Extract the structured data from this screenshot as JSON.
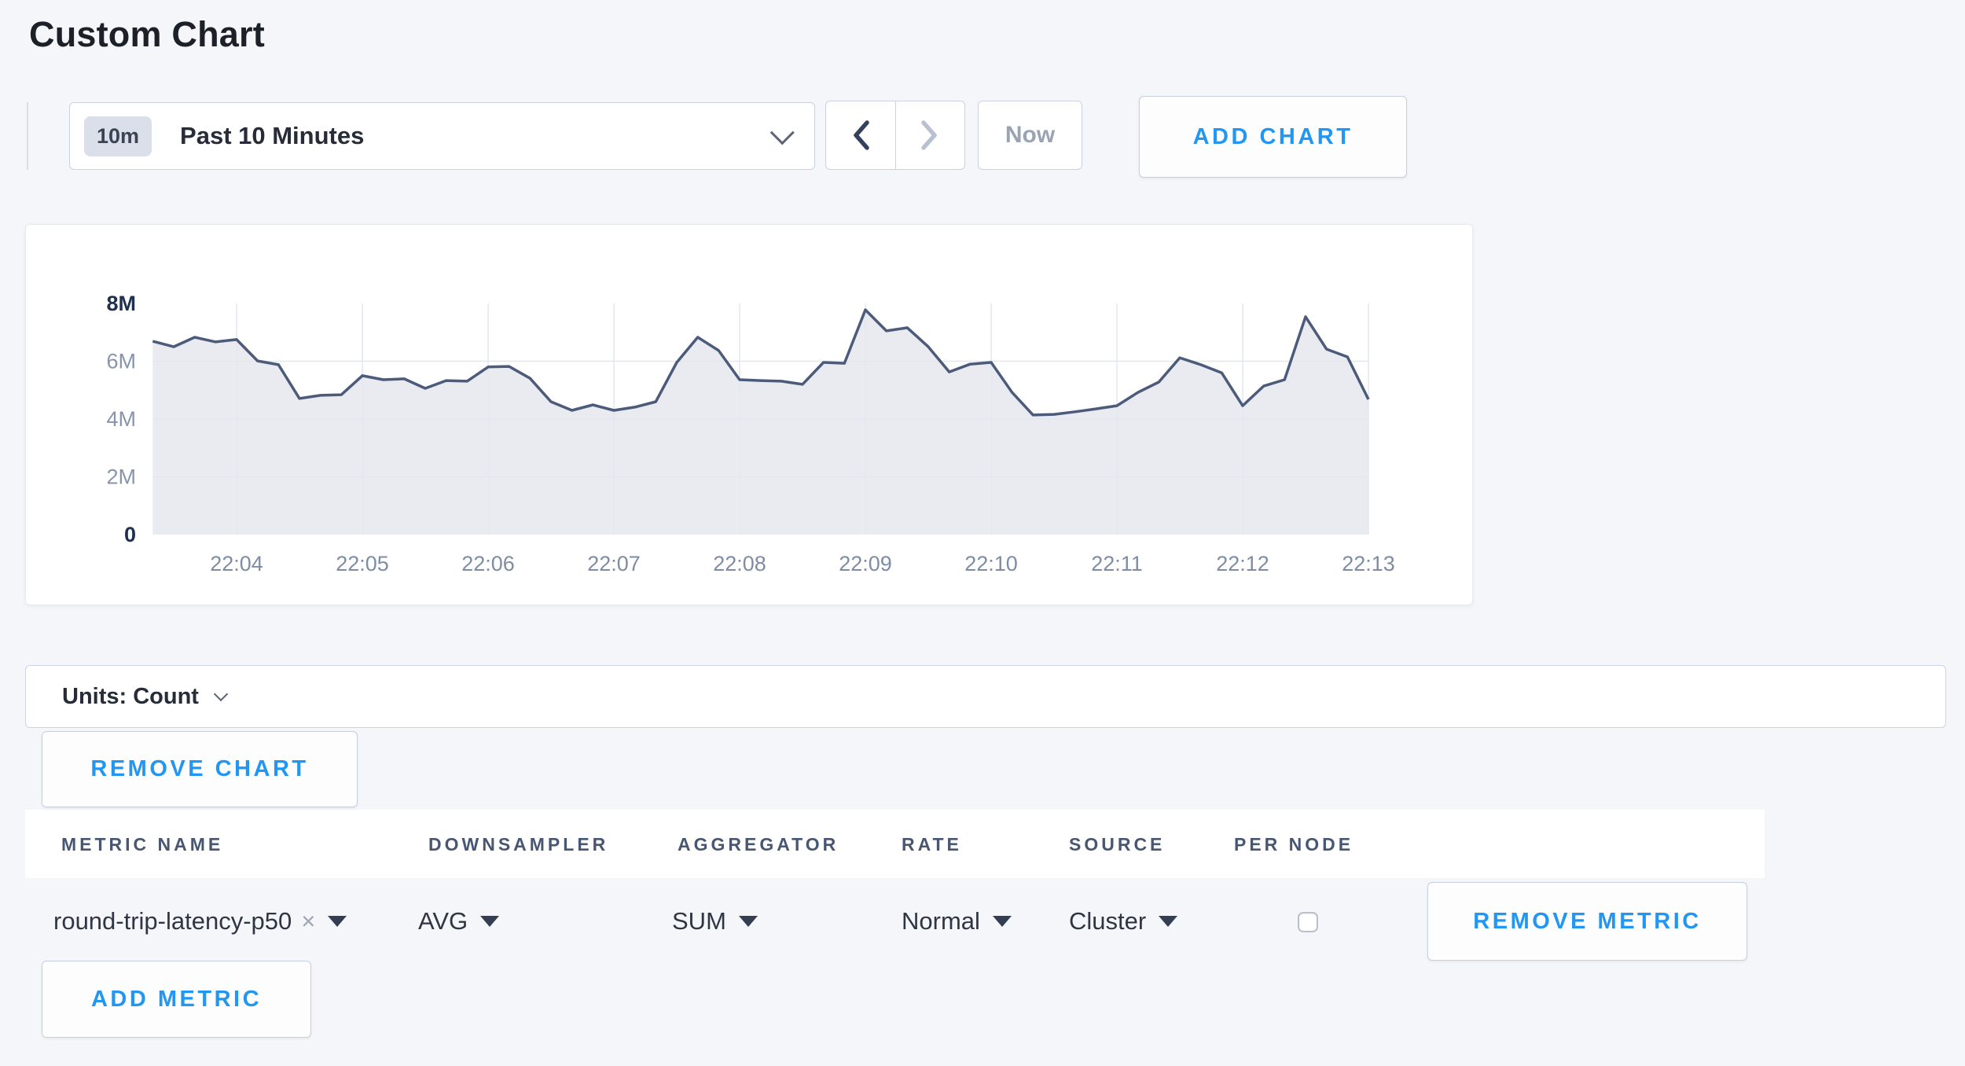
{
  "page": {
    "title": "Custom Chart"
  },
  "colors": {
    "accent_blue": "#2196f3",
    "page_background": "#f5f6fa",
    "chart_line": "#4c5b7a",
    "chart_fill": "#e9ebf1",
    "gridline": "#e3e8f0",
    "axis_label_strong": "#20304f",
    "axis_label_muted": "#8794ad",
    "x_tick_label": "#7e8ca6"
  },
  "toolbar": {
    "range_badge": "10m",
    "range_label": "Past 10 Minutes",
    "prev_arrow_enabled": true,
    "next_arrow_enabled": false,
    "now_label": "Now",
    "add_chart_label": "ADD CHART"
  },
  "chart_data": {
    "type": "area",
    "title": "",
    "xlabel": "",
    "ylabel": "",
    "legend": "none",
    "grid": true,
    "x_start": "22:03:20",
    "x_interval_seconds": 10,
    "x_tick_indices": [
      4,
      10,
      16,
      22,
      28,
      34,
      40,
      46,
      52,
      58
    ],
    "x_tick_labels": [
      "22:04",
      "22:05",
      "22:06",
      "22:07",
      "22:08",
      "22:09",
      "22:10",
      "22:11",
      "22:12",
      "22:13"
    ],
    "ylim": [
      0,
      8000000
    ],
    "y_ticks": [
      {
        "value": 0,
        "label": "0",
        "emphasis": true
      },
      {
        "value": 2000000,
        "label": "2M",
        "emphasis": false
      },
      {
        "value": 4000000,
        "label": "4M",
        "emphasis": false
      },
      {
        "value": 6000000,
        "label": "6M",
        "emphasis": false
      },
      {
        "value": 8000000,
        "label": "8M",
        "emphasis": true
      }
    ],
    "series": [
      {
        "name": "round-trip-latency-p50",
        "values": [
          6690000,
          6500000,
          6830000,
          6670000,
          6750000,
          6010000,
          5880000,
          4710000,
          4820000,
          4840000,
          5500000,
          5360000,
          5390000,
          5060000,
          5330000,
          5310000,
          5800000,
          5820000,
          5410000,
          4600000,
          4300000,
          4490000,
          4300000,
          4410000,
          4600000,
          5960000,
          6830000,
          6370000,
          5360000,
          5330000,
          5310000,
          5200000,
          5960000,
          5930000,
          7780000,
          7050000,
          7160000,
          6500000,
          5630000,
          5900000,
          5960000,
          4920000,
          4140000,
          4160000,
          4250000,
          4350000,
          4460000,
          4920000,
          5280000,
          6120000,
          5880000,
          5600000,
          4460000,
          5140000,
          5360000,
          7540000,
          6420000,
          6150000,
          4680000
        ]
      }
    ]
  },
  "units_bar": {
    "label": "Units: Count"
  },
  "remove_chart_label": "REMOVE CHART",
  "metrics_table": {
    "headers": [
      "METRIC NAME",
      "DOWNSAMPLER",
      "AGGREGATOR",
      "RATE",
      "SOURCE",
      "PER NODE"
    ],
    "row": {
      "metric_name": "round-trip-latency-p50",
      "remove_x": "×",
      "downsampler": "AVG",
      "aggregator": "SUM",
      "rate": "Normal",
      "source": "Cluster",
      "per_node_checked": false
    },
    "remove_metric_label": "REMOVE METRIC",
    "add_metric_label": "ADD METRIC"
  }
}
